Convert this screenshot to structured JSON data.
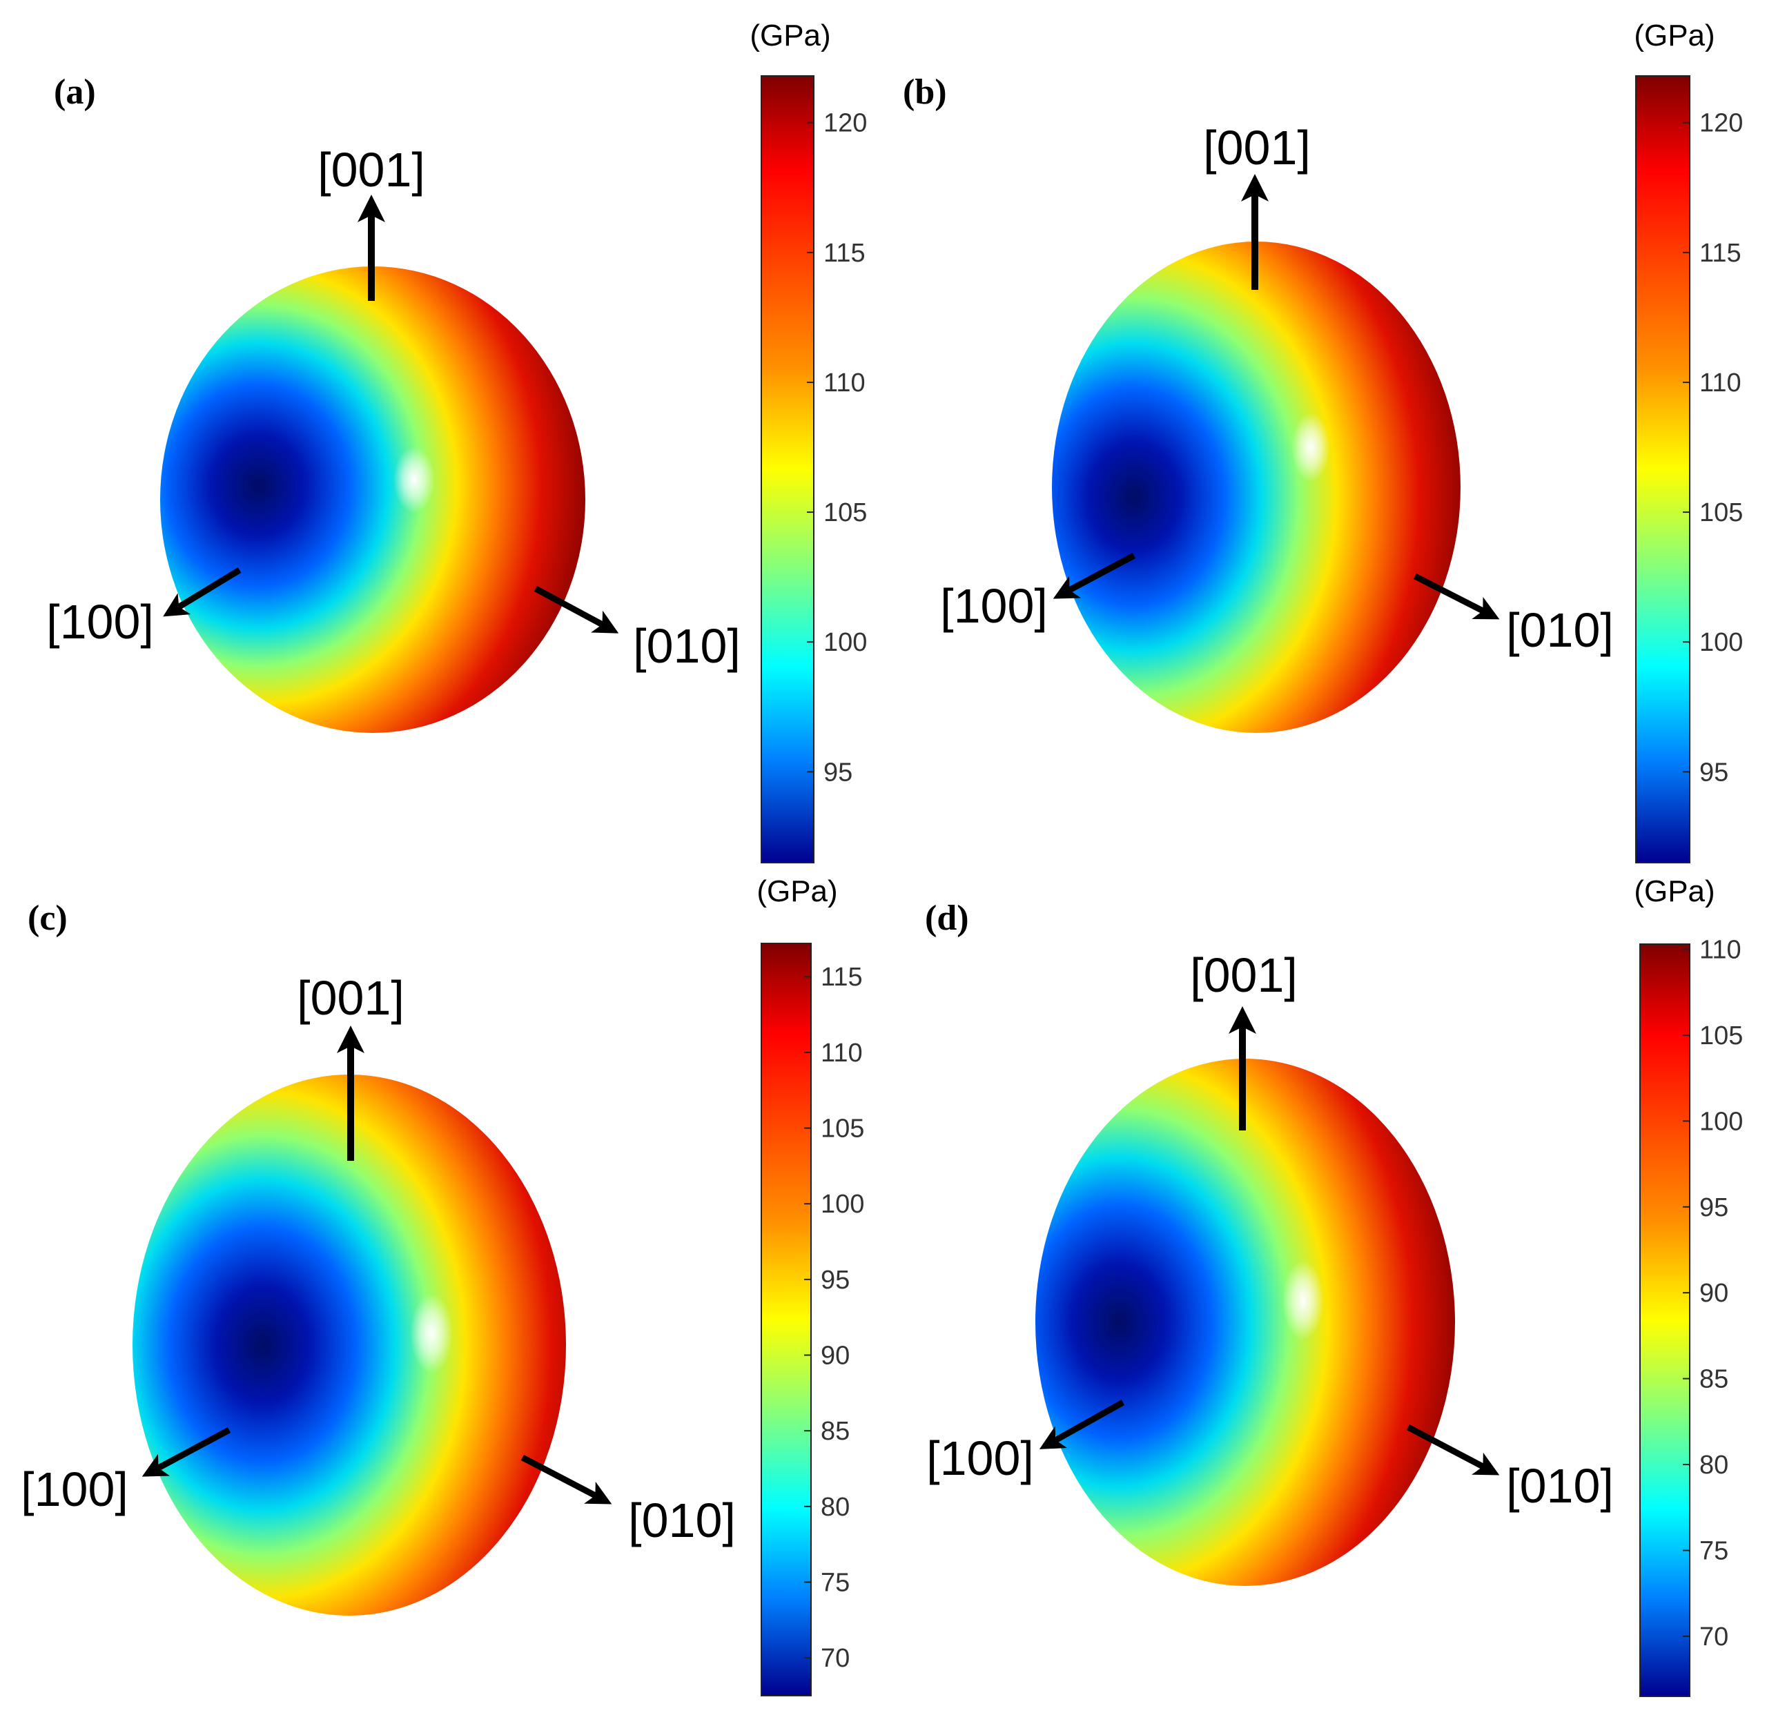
{
  "panels": [
    {
      "id": "a",
      "label": "(a)",
      "axes": {
        "z": "[001]",
        "x": "[100]",
        "y": "[010]"
      },
      "colorbar": {
        "unit": "(GPa)",
        "ticks": [
          "120",
          "115",
          "110",
          "105",
          "100",
          "95"
        ],
        "range": [
          91.5,
          121.8
        ]
      }
    },
    {
      "id": "b",
      "label": "(b)",
      "axes": {
        "z": "[001]",
        "x": "[100]",
        "y": "[010]"
      },
      "colorbar": {
        "unit": "(GPa)",
        "ticks": [
          "120",
          "115",
          "110",
          "105",
          "100",
          "95"
        ],
        "range": [
          91.5,
          121.8
        ]
      }
    },
    {
      "id": "c",
      "label": "(c)",
      "axes": {
        "z": "[001]",
        "x": "[100]",
        "y": "[010]"
      },
      "colorbar": {
        "unit": "(GPa)",
        "ticks": [
          "115",
          "110",
          "105",
          "100",
          "95",
          "90",
          "85",
          "80",
          "75",
          "70"
        ],
        "range": [
          67.5,
          117.2
        ]
      }
    },
    {
      "id": "d",
      "label": "(d)",
      "axes": {
        "z": "[001]",
        "x": "[100]",
        "y": "[010]"
      },
      "colorbar": {
        "unit": "(GPa)",
        "ticks": [
          "110",
          "105",
          "100",
          "95",
          "90",
          "85",
          "80",
          "75",
          "70"
        ],
        "range": [
          66.5,
          110.3
        ]
      }
    }
  ],
  "colors": {
    "jet": [
      "#00008f",
      "#0000ff",
      "#00a0ff",
      "#00ffff",
      "#80ff80",
      "#ffff00",
      "#ff9000",
      "#ff0000",
      "#7f0000"
    ],
    "arrow": "#000000"
  }
}
